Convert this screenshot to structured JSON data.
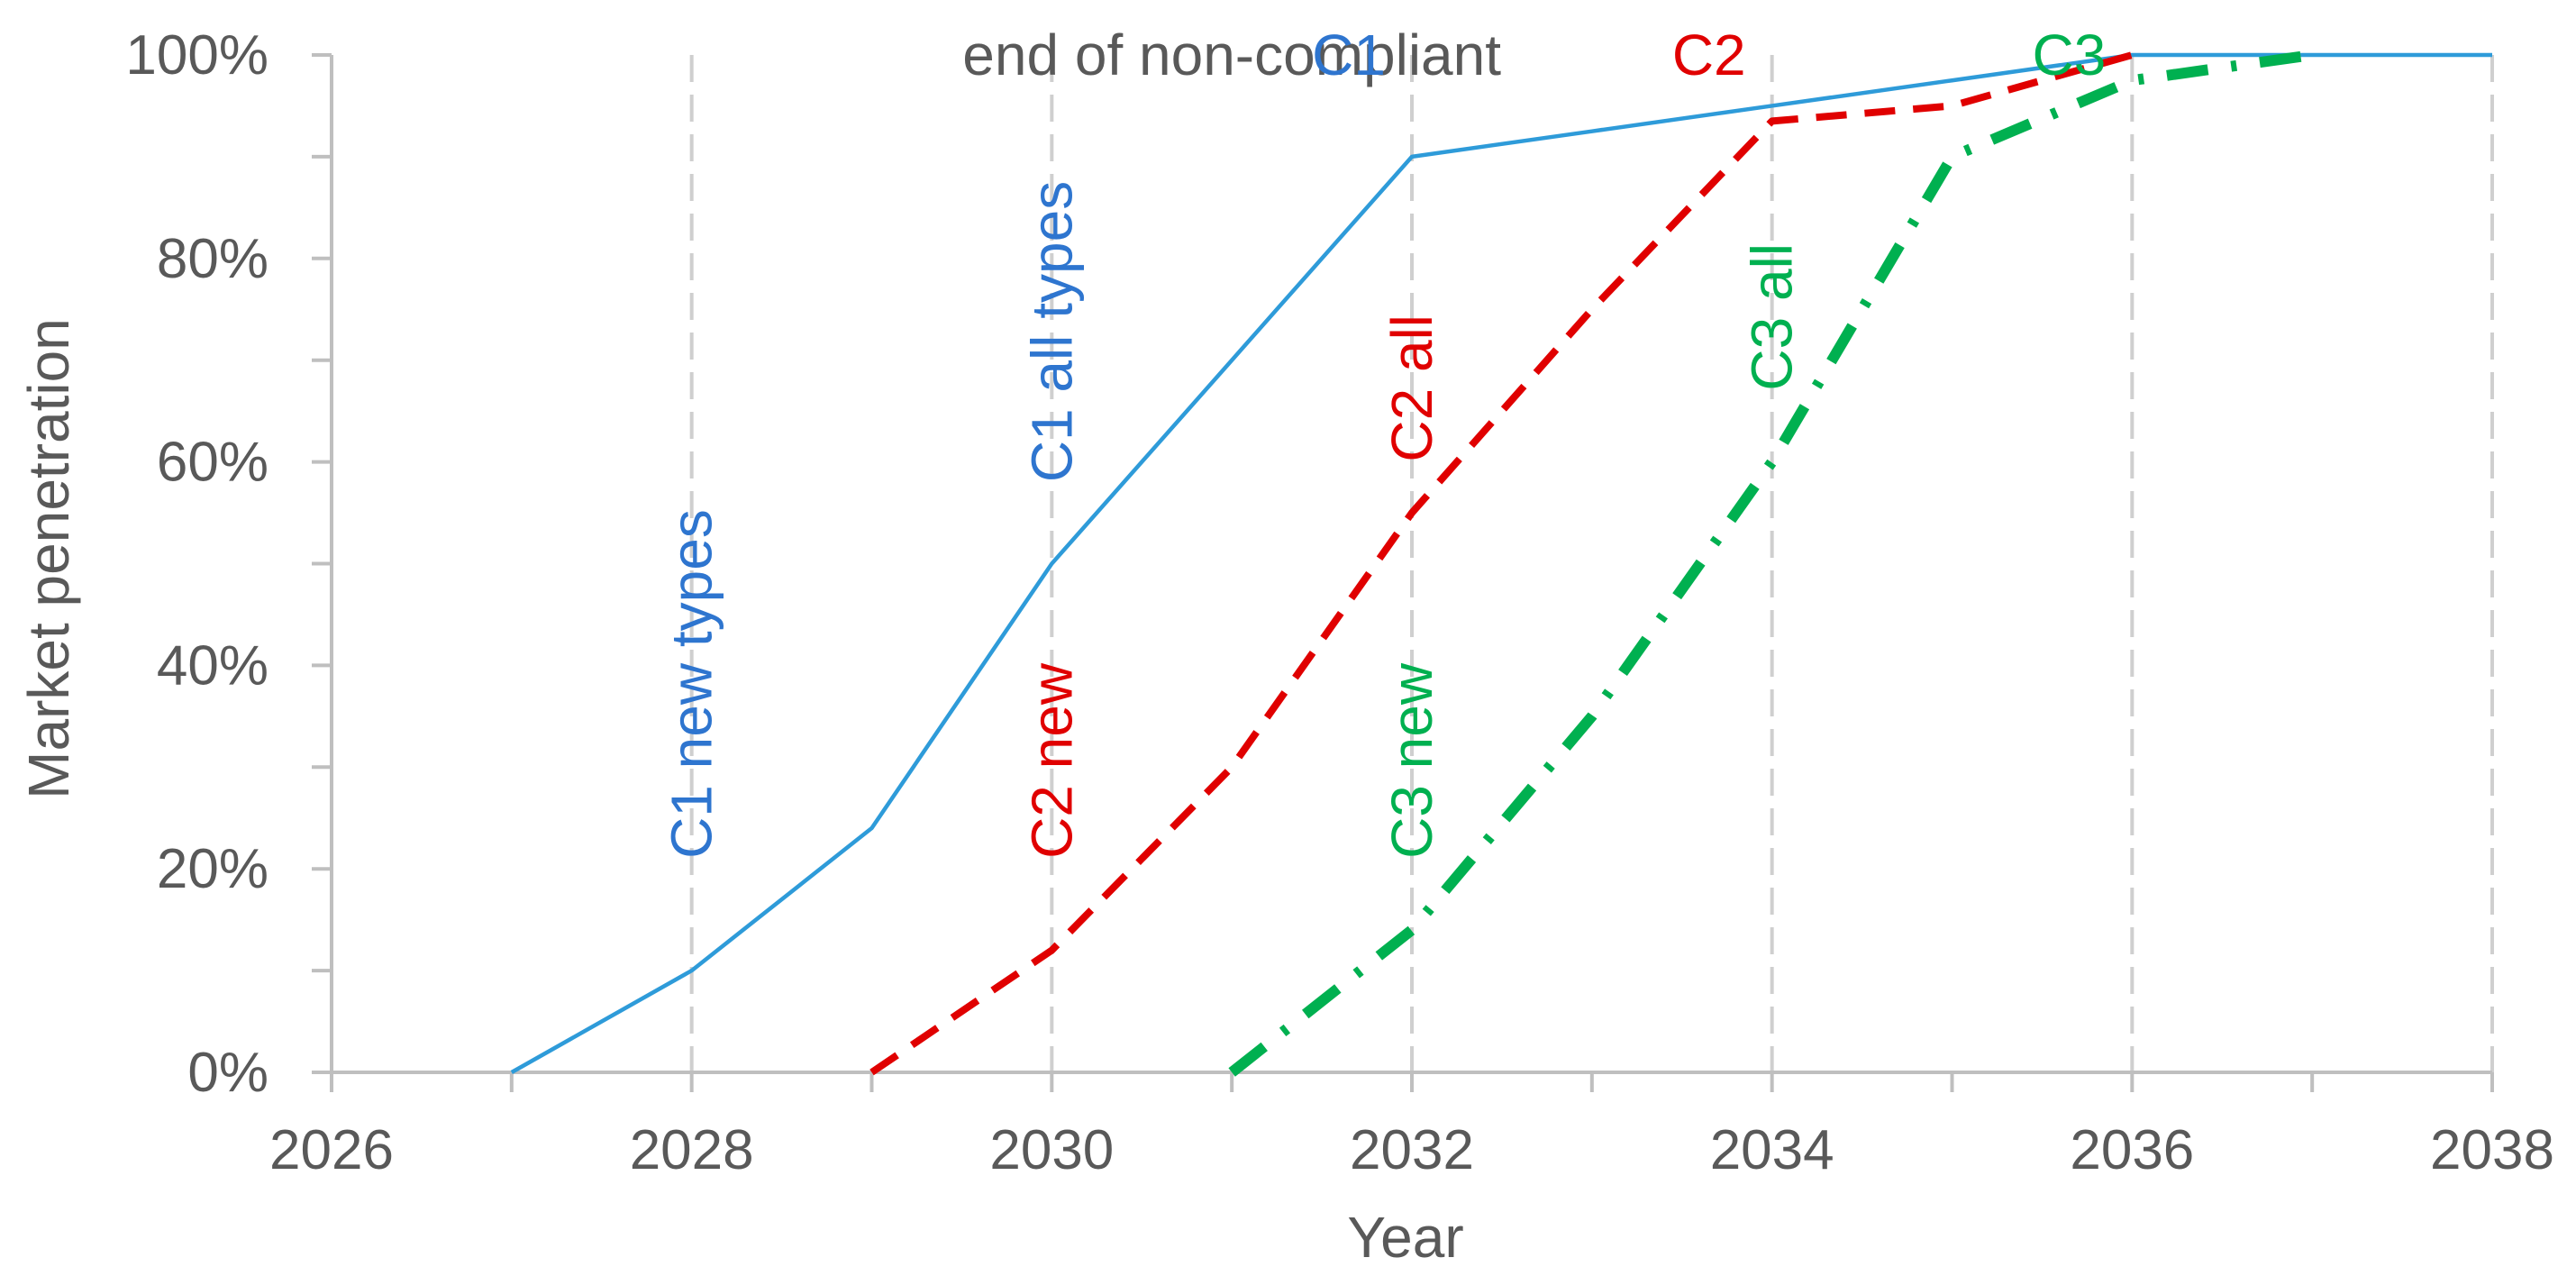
{
  "chart_data": {
    "type": "line",
    "title": "",
    "xlabel": "Year",
    "ylabel": "Market penetration",
    "xlim": [
      2026,
      2038
    ],
    "ylim": [
      0,
      100
    ],
    "x_ticks": [
      2026,
      2028,
      2030,
      2032,
      2034,
      2036,
      2038
    ],
    "x_tick_labels": [
      "2026",
      "2028",
      "2030",
      "2032",
      "2034",
      "2036",
      "2038"
    ],
    "y_ticks": [
      0,
      20,
      40,
      60,
      80,
      100
    ],
    "y_tick_labels": [
      "0%",
      "20%",
      "40%",
      "60%",
      "80%",
      "100%"
    ],
    "grid": "vertical dashed at even years",
    "vertical_markers": [
      2028,
      2030,
      2032,
      2034,
      2036,
      2038
    ],
    "series": [
      {
        "name": "C1",
        "color": "#2E9BD9",
        "style": "solid",
        "x": [
          2027,
          2028,
          2029,
          2030,
          2031,
          2032,
          2033,
          2034,
          2035,
          2036,
          2037,
          2038
        ],
        "values": [
          0,
          10,
          24,
          50,
          70,
          90,
          92.5,
          95,
          97.5,
          100,
          100,
          100
        ]
      },
      {
        "name": "C2",
        "color": "#E00000",
        "style": "dashed",
        "x": [
          2029,
          2030,
          2031,
          2032,
          2033,
          2034,
          2035,
          2036
        ],
        "values": [
          0,
          12,
          30,
          55,
          75,
          93.5,
          95,
          100
        ]
      },
      {
        "name": "C3",
        "color": "#00B050",
        "style": "dash-dot",
        "x": [
          2031,
          2032,
          2033,
          2034,
          2035,
          2036,
          2037
        ],
        "values": [
          0,
          14,
          35,
          60,
          90,
          97.5,
          100
        ]
      }
    ],
    "annotations": [
      {
        "text": "end of non-compliant",
        "color": "#595959",
        "x": 2031,
        "y": 100,
        "rotate": 0,
        "anchor": "middle"
      },
      {
        "text": "C1",
        "color": "#2E75CF",
        "x": 2031.65,
        "y": 100,
        "rotate": 0,
        "anchor": "middle"
      },
      {
        "text": "C2",
        "color": "#E00000",
        "x": 2033.65,
        "y": 100,
        "rotate": 0,
        "anchor": "middle"
      },
      {
        "text": "C3",
        "color": "#00B050",
        "x": 2035.65,
        "y": 100,
        "rotate": 0,
        "anchor": "middle"
      },
      {
        "text": "C1 new types",
        "color": "#2E75CF",
        "x": 2028,
        "y": 21,
        "rotate": -90,
        "anchor": "start"
      },
      {
        "text": "C1 all types",
        "color": "#2E75CF",
        "x": 2030,
        "y": 58,
        "rotate": -90,
        "anchor": "start"
      },
      {
        "text": "C2 new",
        "color": "#E00000",
        "x": 2030,
        "y": 21,
        "rotate": -90,
        "anchor": "start"
      },
      {
        "text": "C2 all",
        "color": "#E00000",
        "x": 2032,
        "y": 60,
        "rotate": -90,
        "anchor": "start"
      },
      {
        "text": "C3 new",
        "color": "#00B050",
        "x": 2032,
        "y": 21,
        "rotate": -90,
        "anchor": "start"
      },
      {
        "text": "C3 all",
        "color": "#00B050",
        "x": 2034,
        "y": 67,
        "rotate": -90,
        "anchor": "start"
      }
    ]
  }
}
